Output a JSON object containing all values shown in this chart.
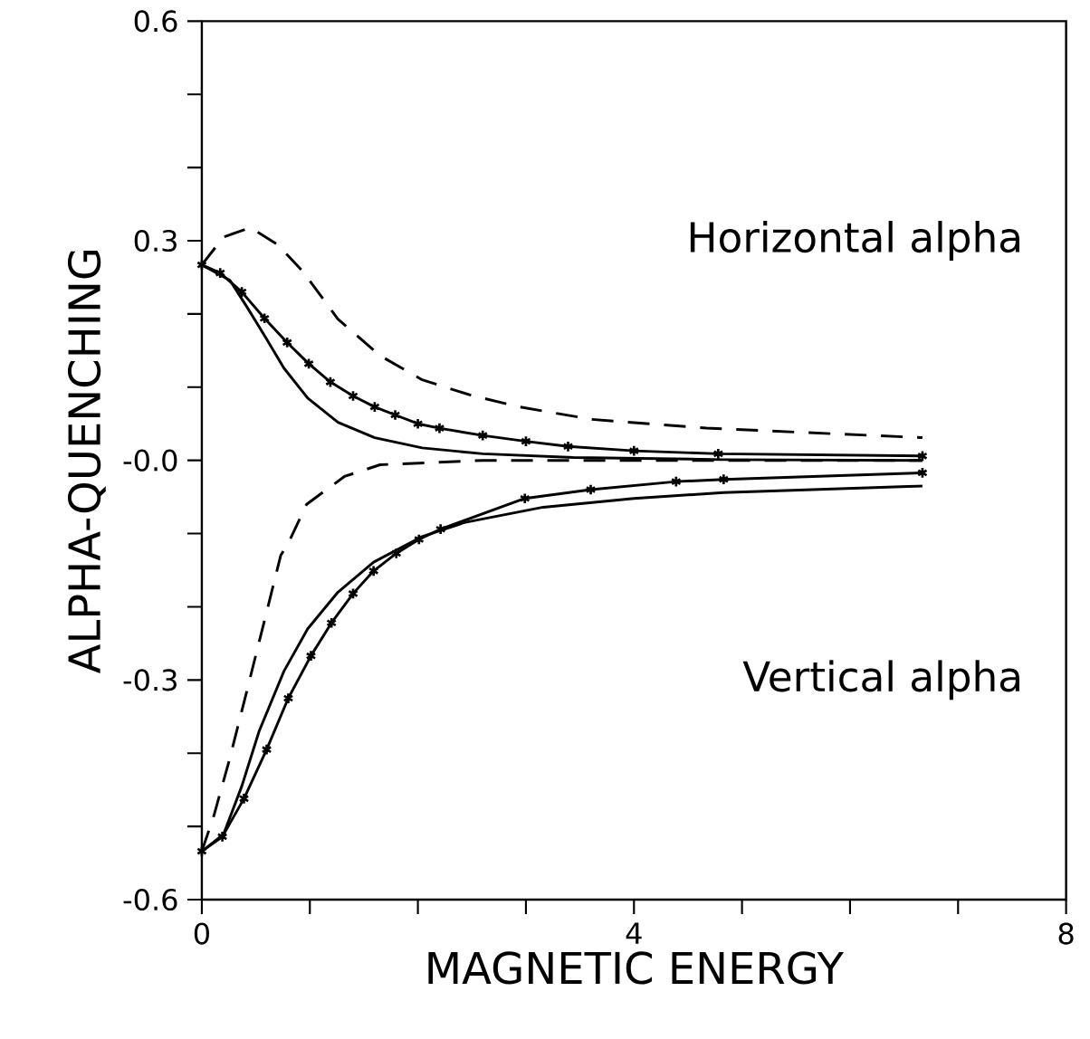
{
  "chart_data": {
    "type": "line",
    "xlabel": "MAGNETIC ENERGY",
    "ylabel": "ALPHA-QUENCHING",
    "xlim": [
      0,
      8
    ],
    "xticks": [
      0,
      {
        "value": 1,
        "label": null
      },
      {
        "value": 2,
        "label": null
      },
      {
        "value": 3,
        "label": null
      },
      4,
      {
        "value": 5,
        "label": null
      },
      {
        "value": 6,
        "label": null
      },
      {
        "value": 7,
        "label": null
      },
      8
    ],
    "ylim": [
      -0.6,
      0.6
    ],
    "yticks": [
      -0.6,
      {
        "value": -0.5,
        "label": null
      },
      {
        "value": -0.4,
        "label": null
      },
      -0.3,
      {
        "value": -0.2,
        "label": null
      },
      {
        "value": -0.1,
        "label": null
      },
      {
        "value": 0,
        "label": "-0.0"
      },
      {
        "value": 0.1,
        "label": null
      },
      {
        "value": 0.2,
        "label": null
      },
      0.3,
      {
        "value": 0.4,
        "label": null
      },
      {
        "value": 0.5,
        "label": null
      },
      0.6
    ],
    "annotations": [
      "Horizontal alpha",
      "Vertical alpha"
    ],
    "series": [
      {
        "color": "#000000",
        "line_style": "dashed",
        "marker": "none",
        "x": [
          0,
          0.2,
          0.45,
          0.7,
          0.93,
          1.26,
          1.65,
          2.04,
          2.49,
          2.94,
          3.61,
          4.67,
          6.67
        ],
        "values": [
          0.267,
          0.305,
          0.318,
          0.295,
          0.259,
          0.193,
          0.143,
          0.11,
          0.089,
          0.073,
          0.056,
          0.044,
          0.031
        ]
      },
      {
        "color": "#000000",
        "line_style": "solid",
        "marker": "cross",
        "x": [
          0,
          0.17,
          0.37,
          0.58,
          0.79,
          0.99,
          1.19,
          1.4,
          1.6,
          1.79,
          2.0,
          2.2,
          2.6,
          3.0,
          3.39,
          4.0,
          4.78,
          6.67
        ],
        "values": [
          0.267,
          0.256,
          0.23,
          0.194,
          0.161,
          0.132,
          0.107,
          0.088,
          0.073,
          0.062,
          0.05,
          0.044,
          0.034,
          0.026,
          0.019,
          0.013,
          0.009,
          0.006
        ]
      },
      {
        "color": "#000000",
        "line_style": "solid",
        "marker": "none",
        "x": [
          0,
          0.26,
          0.42,
          0.59,
          0.76,
          0.98,
          1.26,
          1.6,
          2.04,
          2.6,
          3.44,
          4.83,
          6.67
        ],
        "values": [
          0.267,
          0.246,
          0.209,
          0.168,
          0.126,
          0.085,
          0.052,
          0.031,
          0.017,
          0.009,
          0.004,
          0.001,
          0.0
        ]
      },
      {
        "color": "#000000",
        "line_style": "dashed",
        "marker": "none",
        "x": [
          0,
          0.11,
          0.25,
          0.42,
          0.59,
          0.73,
          0.81,
          0.97,
          1.32,
          1.65,
          2.6,
          6.67
        ],
        "values": [
          -0.534,
          -0.486,
          -0.412,
          -0.313,
          -0.213,
          -0.13,
          -0.11,
          -0.06,
          -0.022,
          -0.006,
          0.0,
          0.0
        ]
      },
      {
        "color": "#000000",
        "line_style": "solid",
        "marker": "none",
        "x": [
          0,
          0.2,
          0.37,
          0.53,
          0.76,
          0.98,
          1.26,
          1.59,
          2.04,
          2.43,
          3.16,
          4.0,
          4.83,
          6.67
        ],
        "values": [
          -0.534,
          -0.511,
          -0.445,
          -0.37,
          -0.288,
          -0.23,
          -0.18,
          -0.139,
          -0.104,
          -0.085,
          -0.064,
          -0.052,
          -0.044,
          -0.035
        ]
      },
      {
        "color": "#000000",
        "line_style": "solid",
        "marker": "cross",
        "x": [
          0,
          0.19,
          0.39,
          0.6,
          0.8,
          1.01,
          1.2,
          1.4,
          1.59,
          1.8,
          2.01,
          2.21,
          2.99,
          3.6,
          4.39,
          4.83,
          6.67
        ],
        "values": [
          -0.534,
          -0.514,
          -0.462,
          -0.395,
          -0.325,
          -0.267,
          -0.222,
          -0.182,
          -0.151,
          -0.127,
          -0.108,
          -0.094,
          -0.052,
          -0.04,
          -0.029,
          -0.026,
          -0.017
        ]
      }
    ]
  }
}
